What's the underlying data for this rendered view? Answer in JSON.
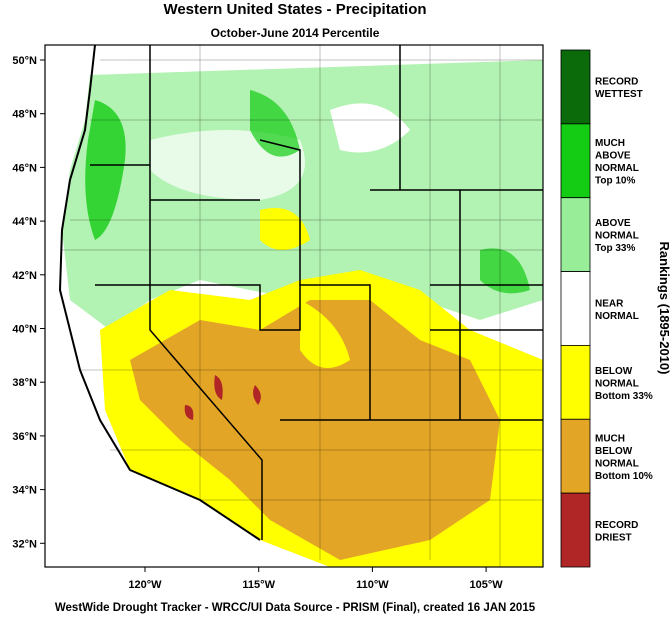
{
  "header": {
    "title": "Western United States - Precipitation",
    "subtitle": "October-June 2014 Percentile"
  },
  "map": {
    "lat_labels": [
      "50°N",
      "48°N",
      "46°N",
      "44°N",
      "42°N",
      "40°N",
      "38°N",
      "36°N",
      "34°N",
      "32°N"
    ],
    "lon_labels": [
      "120°W",
      "115°W",
      "110°W",
      "105°W"
    ]
  },
  "legend": {
    "title": "Rankings (1895-2010)",
    "items": [
      {
        "lines": [
          "RECORD",
          "WETTEST"
        ],
        "color": "#0b6b0b"
      },
      {
        "lines": [
          "MUCH",
          "ABOVE",
          "NORMAL",
          "Top 10%"
        ],
        "color": "#14cc14"
      },
      {
        "lines": [
          "ABOVE",
          "NORMAL",
          "Top 33%"
        ],
        "color": "#98ee98"
      },
      {
        "lines": [
          "NEAR",
          "NORMAL"
        ],
        "color": "#ffffff"
      },
      {
        "lines": [
          "BELOW",
          "NORMAL",
          "Bottom 33%"
        ],
        "color": "#ffff00"
      },
      {
        "lines": [
          "MUCH",
          "BELOW",
          "NORMAL",
          "Bottom 10%"
        ],
        "color": "#e3a526"
      },
      {
        "lines": [
          "RECORD",
          "DRIEST"
        ],
        "color": "#b02525"
      }
    ]
  },
  "footer": "WestWide Drought Tracker - WRCC/UI  Data Source - PRISM (Final), created 16 JAN 2015"
}
